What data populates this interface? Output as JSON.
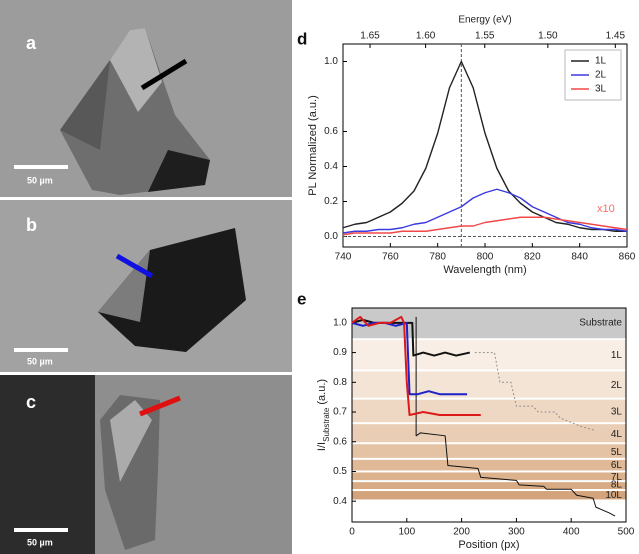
{
  "panels": [
    {
      "label": "a",
      "scale_bar": "50 µm"
    },
    {
      "label": "b",
      "scale_bar": "50 µm"
    },
    {
      "label": "c",
      "scale_bar": "50 µm"
    }
  ],
  "chart_data": [
    {
      "type": "line",
      "panel_label": "d",
      "xlabel": "Wavelength (nm)",
      "ylabel": "PL Normalized (a.u.)",
      "x2label": "Energy (eV)",
      "x": [
        740,
        745,
        750,
        755,
        760,
        765,
        770,
        775,
        780,
        785,
        790,
        795,
        800,
        805,
        810,
        815,
        820,
        825,
        830,
        835,
        840,
        845,
        850,
        855,
        860
      ],
      "series": [
        {
          "name": "1L",
          "color": "#222222",
          "values": [
            0.05,
            0.07,
            0.08,
            0.11,
            0.14,
            0.19,
            0.26,
            0.39,
            0.59,
            0.85,
            1.0,
            0.85,
            0.59,
            0.39,
            0.26,
            0.19,
            0.14,
            0.11,
            0.08,
            0.07,
            0.05,
            0.04,
            0.04,
            0.03,
            0.03
          ]
        },
        {
          "name": "2L",
          "color": "#3a3ae0",
          "values": [
            0.02,
            0.03,
            0.03,
            0.04,
            0.04,
            0.05,
            0.07,
            0.08,
            0.11,
            0.14,
            0.17,
            0.22,
            0.25,
            0.27,
            0.25,
            0.22,
            0.17,
            0.14,
            0.11,
            0.08,
            0.07,
            0.05,
            0.04,
            0.04,
            0.03
          ]
        },
        {
          "name": "3L",
          "color": "#f04848",
          "values": [
            0.01,
            0.02,
            0.02,
            0.02,
            0.02,
            0.03,
            0.03,
            0.03,
            0.04,
            0.05,
            0.06,
            0.06,
            0.08,
            0.09,
            0.1,
            0.11,
            0.11,
            0.11,
            0.1,
            0.09,
            0.08,
            0.07,
            0.06,
            0.05,
            0.04
          ]
        }
      ],
      "xlim": [
        740,
        860
      ],
      "xticks": [
        740,
        760,
        780,
        800,
        820,
        840,
        860
      ],
      "x2ticks": [
        {
          "value": 1.65,
          "label": "1.65"
        },
        {
          "value": 1.6,
          "label": "1.60"
        },
        {
          "value": 1.55,
          "label": "1.55"
        },
        {
          "value": 1.5,
          "label": "1.50"
        },
        {
          "value": 1.45,
          "label": "1.45"
        }
      ],
      "ylim": [
        -0.06,
        1.1
      ],
      "yticks": [
        {
          "value": 0,
          "label": "0.0"
        },
        0.2,
        0.4,
        0.6,
        {
          "value": 1,
          "label": "1.0"
        }
      ],
      "vline": 790,
      "hline": 0,
      "legend": "upper right",
      "annotations": [
        {
          "text": "x10",
          "color": "#ff6b6b"
        }
      ]
    },
    {
      "type": "line",
      "panel_label": "e",
      "xlabel": "Position (px)",
      "ylabel_main": "I/I",
      "ylabel_sub": "Substrate",
      "ylabel_unit": "(a.u.)",
      "series": [
        {
          "color": "#111111",
          "line_width": 2,
          "x": [
            0,
            20,
            40,
            60,
            80,
            100,
            110,
            112,
            130,
            150,
            170,
            190,
            215
          ],
          "values": [
            1.0,
            1.01,
            1.0,
            1.0,
            1.0,
            1.0,
            1.0,
            0.89,
            0.9,
            0.89,
            0.9,
            0.89,
            0.9
          ]
        },
        {
          "color": "#111111",
          "line_width": 1,
          "x": [
            117,
            117,
            125,
            170,
            175,
            230,
            235,
            300,
            305,
            350,
            355,
            400,
            410,
            440,
            445,
            470,
            480
          ],
          "values": [
            1.02,
            0.62,
            0.63,
            0.62,
            0.52,
            0.51,
            0.48,
            0.47,
            0.455,
            0.45,
            0.44,
            0.44,
            0.42,
            0.41,
            0.38,
            0.36,
            0.35
          ]
        },
        {
          "color": "#8a8a8a",
          "line_width": 1,
          "dash": "dot",
          "x": [
            225,
            260,
            270,
            290,
            300,
            330,
            340,
            370,
            380,
            420,
            440
          ],
          "values": [
            0.9,
            0.9,
            0.8,
            0.8,
            0.72,
            0.72,
            0.7,
            0.7,
            0.68,
            0.65,
            0.64
          ]
        },
        {
          "color": "#2020c8",
          "line_width": 2,
          "x": [
            0,
            20,
            40,
            60,
            80,
            100,
            105,
            120,
            140,
            160,
            180,
            210
          ],
          "values": [
            1.0,
            0.99,
            1.0,
            1.0,
            0.99,
            1.0,
            0.76,
            0.76,
            0.77,
            0.76,
            0.76,
            0.76
          ]
        },
        {
          "color": "#dd1a1a",
          "line_width": 2,
          "x": [
            0,
            15,
            30,
            50,
            70,
            90,
            95,
            100,
            105,
            130,
            160,
            190,
            235
          ],
          "values": [
            1.0,
            1.02,
            0.99,
            1.0,
            1.0,
            1.02,
            1.0,
            0.8,
            0.69,
            0.7,
            0.69,
            0.69,
            0.69
          ]
        }
      ],
      "bands": [
        {
          "label": "Substrate",
          "value": 1.0,
          "color": "#c9c9c9"
        },
        {
          "label": "1L",
          "value": 0.89,
          "color": "#f8eee5"
        },
        {
          "label": "2L",
          "value": 0.79,
          "color": "#f3e4d6"
        },
        {
          "label": "3L",
          "value": 0.7,
          "color": "#eed8c4"
        },
        {
          "label": "4L",
          "value": 0.625,
          "color": "#e9cdb4"
        },
        {
          "label": "5L",
          "value": 0.565,
          "color": "#e4c2a4"
        },
        {
          "label": "6L",
          "value": 0.52,
          "color": "#e0b997"
        },
        {
          "label": "7L",
          "value": 0.48,
          "color": "#dcb28d"
        },
        {
          "label": "8L",
          "value": 0.455,
          "color": "#d8ab84"
        },
        {
          "label": "10L",
          "value": 0.42,
          "color": "#d3a47b"
        }
      ],
      "xlim": [
        0,
        500
      ],
      "xticks": [
        0,
        100,
        200,
        300,
        400,
        500
      ],
      "ylim": [
        0.33,
        1.05
      ],
      "yticks": [
        0.4,
        0.5,
        0.6,
        0.7,
        0.8,
        0.9,
        {
          "value": 1,
          "label": "1.0"
        }
      ]
    }
  ]
}
